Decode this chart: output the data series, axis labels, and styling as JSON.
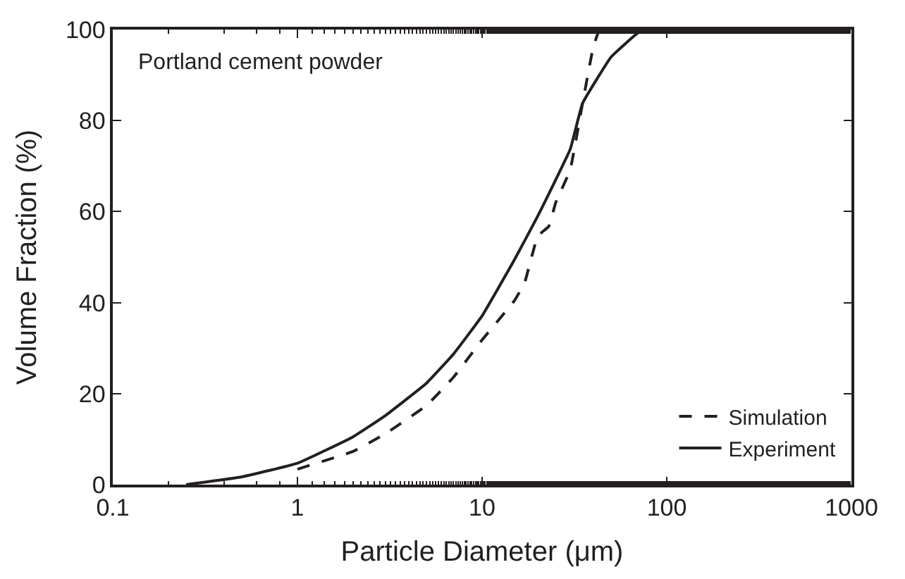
{
  "chart_data": {
    "type": "line",
    "xlabel": "Particle Diameter (μm)",
    "ylabel": "Volume Fraction (%)",
    "log": "x",
    "xlim": [
      0.1,
      1000
    ],
    "xticks": [
      0.1,
      1,
      10,
      100,
      1000
    ],
    "ylim": [
      0,
      100
    ],
    "yticks": [
      0,
      20,
      40,
      60,
      80,
      100
    ],
    "grid": false,
    "legend": "bottom right",
    "annotations": [
      "Portland cement powder"
    ],
    "series": [
      {
        "name": "Simulation",
        "color": "#231f20",
        "line_style": "dashed",
        "x": [
          1,
          2,
          3,
          5,
          7,
          10,
          15,
          17,
          20,
          23,
          25,
          30,
          35,
          40,
          43,
          45
        ],
        "values": [
          3.4,
          7.3,
          11.2,
          17.4,
          23.6,
          31.8,
          40.5,
          44.4,
          54.6,
          56.8,
          61.9,
          69.2,
          83.8,
          96.2,
          99.7,
          100
        ]
      },
      {
        "name": "Experiment",
        "color": "#231f20",
        "line_style": "solid",
        "x": [
          0.25,
          0.5,
          1,
          2,
          3,
          5,
          7,
          10,
          15,
          20,
          30,
          35,
          50,
          70,
          80,
          140
        ],
        "values": [
          0,
          1.7,
          4.7,
          10.5,
          15.2,
          22.3,
          28.7,
          37.1,
          49.5,
          59,
          73.7,
          83.8,
          94,
          99.3,
          100,
          100
        ]
      }
    ]
  }
}
